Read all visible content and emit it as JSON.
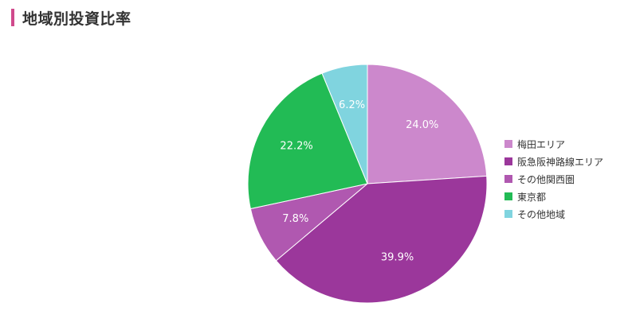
{
  "header": {
    "title": "地域別投資比率"
  },
  "colors": {
    "title_bar": "#d04a8c"
  },
  "chart_data": {
    "type": "pie",
    "title": "地域別投資比率",
    "legend_position": "right",
    "slices": [
      {
        "label": "梅田エリア",
        "value": 24.0,
        "display": "24.0%",
        "color": "#cc88cc"
      },
      {
        "label": "阪急阪神路線エリア",
        "value": 39.9,
        "display": "39.9%",
        "color": "#9b379b"
      },
      {
        "label": "その他関西圏",
        "value": 7.8,
        "display": "7.8%",
        "color": "#b058b0"
      },
      {
        "label": "東京都",
        "value": 22.2,
        "display": "22.2%",
        "color": "#22bb55"
      },
      {
        "label": "その他地域",
        "value": 6.2,
        "display": "6.2%",
        "color": "#80d4df"
      }
    ]
  }
}
